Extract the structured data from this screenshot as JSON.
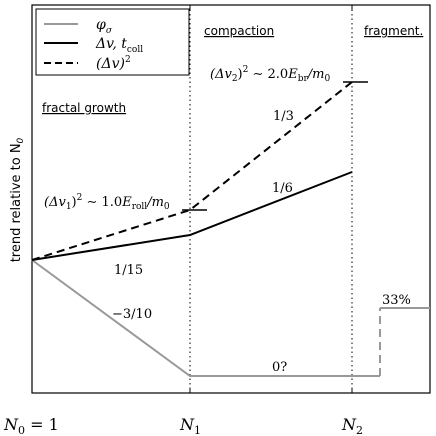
{
  "legend": {
    "items": [
      {
        "label": "φ",
        "sub": "σ",
        "style": "solid",
        "color": "#999999"
      },
      {
        "label": "Δv, t",
        "sub": "coll",
        "style": "solid",
        "color": "#000000"
      },
      {
        "label": "(Δv)",
        "sup": "2",
        "style": "dashed",
        "color": "#000000"
      }
    ]
  },
  "regions": {
    "compaction": "compaction",
    "fragmentation": "fragment.",
    "fractal_growth": "fractal growth"
  },
  "axis": {
    "ylabel_main": "trend relative to N",
    "ylabel_sub": "0",
    "x_ticks": [
      {
        "main": "N",
        "sub": "0",
        "suffix": " = 1"
      },
      {
        "main": "N",
        "sub": "1",
        "suffix": ""
      },
      {
        "main": "N",
        "sub": "2",
        "suffix": ""
      }
    ]
  },
  "annotations": {
    "slope_dv_fractal": "1/15",
    "slope_phi_fractal": "−3/10",
    "slope_dv2_compaction": "1/3",
    "slope_dv_compaction": "1/6",
    "phi_compaction": "0?",
    "frag_percent": "33%",
    "eq1": {
      "pre": "(Δv",
      "sub1": "1",
      "mid": ")",
      "sup": "2",
      "rel": " ∼ 1.0",
      "E": "E",
      "Esub": "roll",
      "tail": "/m",
      "msub": "0"
    },
    "eq2": {
      "pre": "(Δv",
      "sub1": "2",
      "mid": ")",
      "sup": "2",
      "rel": " ∼ 2.0",
      "E": "E",
      "Esub": "br",
      "tail": "/m",
      "msub": "0"
    }
  }
}
